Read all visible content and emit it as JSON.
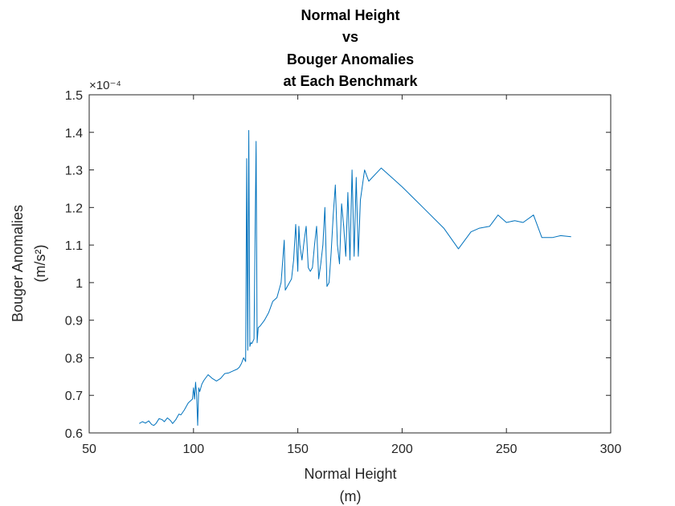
{
  "chart_data": {
    "type": "line",
    "title_lines": [
      "Normal Height",
      "vs",
      "Bouger Anomalies",
      "at Each Benchmark"
    ],
    "xlabel_lines": [
      "Normal Height",
      "(m)"
    ],
    "ylabel_lines": [
      "Bouger Anomalies",
      "(m/s²)"
    ],
    "xlim": [
      50,
      300
    ],
    "ylim": [
      0.6,
      1.5
    ],
    "x_ticks": [
      50,
      100,
      150,
      200,
      250,
      300
    ],
    "x_tick_labels": [
      "50",
      "100",
      "150",
      "200",
      "250",
      "300"
    ],
    "y_ticks": [
      0.6,
      0.7,
      0.8,
      0.9,
      1.0,
      1.1,
      1.2,
      1.3,
      1.4,
      1.5
    ],
    "y_tick_labels": [
      "0.6",
      "0.7",
      "0.8",
      "0.9",
      "1",
      "1.1",
      "1.2",
      "1.3",
      "1.4",
      "1.5"
    ],
    "y_exponent_label": "×10⁻⁴",
    "grid": false,
    "line_color": "#0072bd",
    "series": [
      {
        "x": [
          74,
          75.5,
          77,
          78.5,
          80,
          81,
          82,
          83.5,
          85,
          86,
          87.5,
          89,
          90,
          91.5,
          93,
          94,
          95.5,
          96.5,
          97.5,
          98.5,
          99.5,
          100,
          100.5,
          101,
          101.5,
          102,
          102.5,
          103,
          104,
          105,
          107,
          109,
          111,
          113,
          115,
          117,
          119,
          121,
          122,
          123,
          124,
          125,
          125.5,
          126,
          126.5,
          127,
          127.5,
          128,
          129,
          130,
          130.5,
          131,
          132,
          134,
          136,
          138,
          140,
          142,
          143.5,
          144,
          145,
          146,
          147,
          148,
          149,
          150,
          150.5,
          151,
          152,
          153,
          154,
          155,
          156,
          157,
          158,
          159,
          160,
          161,
          162,
          163,
          164,
          165,
          166,
          167,
          168,
          169,
          170,
          171,
          172,
          173,
          174,
          175,
          176,
          177,
          178,
          179,
          180,
          182,
          184,
          190,
          195,
          200,
          210,
          220,
          227,
          233,
          237,
          242,
          246,
          250,
          254,
          258,
          263,
          267,
          272,
          276,
          281
        ],
        "y": [
          0.625,
          0.63,
          0.626,
          0.632,
          0.622,
          0.62,
          0.625,
          0.638,
          0.635,
          0.63,
          0.64,
          0.633,
          0.625,
          0.635,
          0.65,
          0.648,
          0.66,
          0.67,
          0.68,
          0.685,
          0.69,
          0.72,
          0.69,
          0.735,
          0.7,
          0.62,
          0.72,
          0.71,
          0.73,
          0.74,
          0.755,
          0.745,
          0.738,
          0.745,
          0.758,
          0.76,
          0.765,
          0.77,
          0.775,
          0.785,
          0.8,
          0.79,
          1.33,
          0.82,
          1.405,
          0.83,
          0.84,
          0.838,
          0.85,
          1.376,
          0.84,
          0.88,
          0.885,
          0.9,
          0.92,
          0.95,
          0.96,
          1.0,
          1.113,
          0.98,
          0.99,
          1.0,
          1.01,
          1.06,
          1.155,
          1.03,
          1.15,
          1.1,
          1.06,
          1.11,
          1.15,
          1.04,
          1.03,
          1.04,
          1.1,
          1.15,
          1.01,
          1.05,
          1.1,
          1.2,
          0.99,
          1.0,
          1.08,
          1.18,
          1.26,
          1.1,
          1.05,
          1.21,
          1.15,
          1.07,
          1.24,
          1.06,
          1.3,
          1.07,
          1.28,
          1.07,
          1.22,
          1.3,
          1.27,
          1.305,
          1.28,
          1.255,
          1.2,
          1.145,
          1.09,
          1.135,
          1.145,
          1.15,
          1.18,
          1.16,
          1.165,
          1.16,
          1.18,
          1.12,
          1.12,
          1.125,
          1.122
        ]
      }
    ]
  }
}
